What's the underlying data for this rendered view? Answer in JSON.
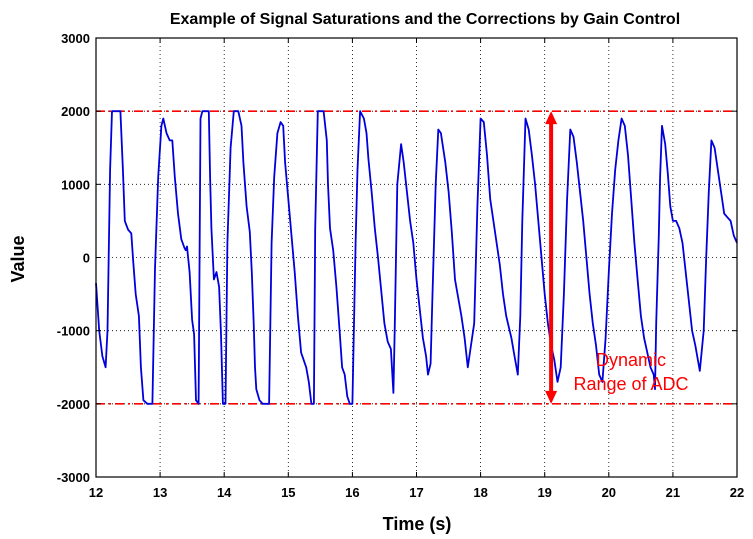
{
  "chart_data": {
    "type": "line",
    "title": "Example of Signal Saturations and the Corrections by Gain Control",
    "xlabel": "Time (s)",
    "ylabel": "Value",
    "xlim": [
      12,
      22
    ],
    "ylim": [
      -3000,
      3000
    ],
    "grid": true,
    "xticks": [
      "12",
      "13",
      "14",
      "15",
      "16",
      "17",
      "18",
      "19",
      "20",
      "21",
      "22"
    ],
    "yticks": [
      "3000",
      "2000",
      "1000",
      "0",
      "-1000",
      "-2000",
      "-3000"
    ],
    "series": [
      {
        "color": "#0000dd",
        "points": [
          [
            12.0,
            -350
          ],
          [
            12.05,
            -1000
          ],
          [
            12.1,
            -1350
          ],
          [
            12.15,
            -1500
          ],
          [
            12.18,
            -1000
          ],
          [
            12.22,
            1200
          ],
          [
            12.25,
            2000
          ],
          [
            12.3,
            2000
          ],
          [
            12.38,
            2000
          ],
          [
            12.42,
            1200
          ],
          [
            12.45,
            500
          ],
          [
            12.5,
            380
          ],
          [
            12.55,
            330
          ],
          [
            12.58,
            -50
          ],
          [
            12.62,
            -500
          ],
          [
            12.67,
            -800
          ],
          [
            12.7,
            -1500
          ],
          [
            12.74,
            -1950
          ],
          [
            12.8,
            -2000
          ],
          [
            12.88,
            -2000
          ],
          [
            12.92,
            -150
          ],
          [
            12.97,
            1100
          ],
          [
            13.02,
            1800
          ],
          [
            13.05,
            1900
          ],
          [
            13.1,
            1700
          ],
          [
            13.15,
            1600
          ],
          [
            13.19,
            1600
          ],
          [
            13.23,
            1100
          ],
          [
            13.28,
            600
          ],
          [
            13.33,
            250
          ],
          [
            13.38,
            130
          ],
          [
            13.4,
            100
          ],
          [
            13.42,
            150
          ],
          [
            13.46,
            -200
          ],
          [
            13.5,
            -850
          ],
          [
            13.53,
            -1050
          ],
          [
            13.56,
            -1950
          ],
          [
            13.6,
            -2000
          ],
          [
            13.63,
            1900
          ],
          [
            13.66,
            2000
          ],
          [
            13.72,
            2000
          ],
          [
            13.76,
            2000
          ],
          [
            13.78,
            1100
          ],
          [
            13.8,
            400
          ],
          [
            13.84,
            -300
          ],
          [
            13.88,
            -200
          ],
          [
            13.92,
            -400
          ],
          [
            13.95,
            -1050
          ],
          [
            13.98,
            -2000
          ],
          [
            14.02,
            -2000
          ],
          [
            14.05,
            200
          ],
          [
            14.1,
            1500
          ],
          [
            14.15,
            2000
          ],
          [
            14.22,
            2000
          ],
          [
            14.27,
            1800
          ],
          [
            14.3,
            1300
          ],
          [
            14.35,
            700
          ],
          [
            14.4,
            350
          ],
          [
            14.43,
            -200
          ],
          [
            14.46,
            -900
          ],
          [
            14.48,
            -1500
          ],
          [
            14.5,
            -1800
          ],
          [
            14.55,
            -1950
          ],
          [
            14.6,
            -2000
          ],
          [
            14.7,
            -2000
          ],
          [
            14.74,
            200
          ],
          [
            14.78,
            1100
          ],
          [
            14.83,
            1700
          ],
          [
            14.88,
            1850
          ],
          [
            14.92,
            1800
          ],
          [
            14.95,
            1300
          ],
          [
            15.0,
            800
          ],
          [
            15.05,
            300
          ],
          [
            15.1,
            -200
          ],
          [
            15.15,
            -800
          ],
          [
            15.2,
            -1300
          ],
          [
            15.28,
            -1500
          ],
          [
            15.32,
            -1700
          ],
          [
            15.36,
            -2000
          ],
          [
            15.4,
            -2000
          ],
          [
            15.42,
            400
          ],
          [
            15.46,
            2000
          ],
          [
            15.55,
            2000
          ],
          [
            15.6,
            1600
          ],
          [
            15.62,
            1000
          ],
          [
            15.65,
            400
          ],
          [
            15.7,
            100
          ],
          [
            15.75,
            -400
          ],
          [
            15.8,
            -1000
          ],
          [
            15.84,
            -1500
          ],
          [
            15.88,
            -1600
          ],
          [
            15.92,
            -1900
          ],
          [
            15.96,
            -2000
          ],
          [
            16.0,
            -2000
          ],
          [
            16.05,
            200
          ],
          [
            16.08,
            1200
          ],
          [
            16.12,
            2000
          ],
          [
            16.18,
            1900
          ],
          [
            16.22,
            1700
          ],
          [
            16.25,
            1350
          ],
          [
            16.3,
            900
          ],
          [
            16.35,
            400
          ],
          [
            16.4,
            0
          ],
          [
            16.45,
            -450
          ],
          [
            16.5,
            -900
          ],
          [
            16.55,
            -1150
          ],
          [
            16.6,
            -1250
          ],
          [
            16.64,
            -1850
          ],
          [
            16.66,
            -1000
          ],
          [
            16.7,
            1000
          ],
          [
            16.76,
            1550
          ],
          [
            16.8,
            1300
          ],
          [
            16.85,
            900
          ],
          [
            16.9,
            500
          ],
          [
            16.95,
            200
          ],
          [
            17.0,
            -300
          ],
          [
            17.05,
            -700
          ],
          [
            17.1,
            -1100
          ],
          [
            17.15,
            -1350
          ],
          [
            17.18,
            -1600
          ],
          [
            17.22,
            -1450
          ],
          [
            17.25,
            -500
          ],
          [
            17.3,
            1000
          ],
          [
            17.34,
            1750
          ],
          [
            17.38,
            1700
          ],
          [
            17.45,
            1300
          ],
          [
            17.5,
            900
          ],
          [
            17.55,
            350
          ],
          [
            17.6,
            -300
          ],
          [
            17.7,
            -800
          ],
          [
            17.75,
            -1100
          ],
          [
            17.8,
            -1500
          ],
          [
            17.85,
            -1200
          ],
          [
            17.9,
            -900
          ],
          [
            17.95,
            700
          ],
          [
            18.0,
            1900
          ],
          [
            18.05,
            1850
          ],
          [
            18.1,
            1400
          ],
          [
            18.15,
            800
          ],
          [
            18.2,
            500
          ],
          [
            18.25,
            200
          ],
          [
            18.3,
            -100
          ],
          [
            18.35,
            -500
          ],
          [
            18.4,
            -800
          ],
          [
            18.48,
            -1100
          ],
          [
            18.52,
            -1300
          ],
          [
            18.58,
            -1600
          ],
          [
            18.62,
            -800
          ],
          [
            18.65,
            500
          ],
          [
            18.7,
            1900
          ],
          [
            18.75,
            1750
          ],
          [
            18.8,
            1400
          ],
          [
            18.85,
            1000
          ],
          [
            18.9,
            500
          ],
          [
            18.95,
            0
          ],
          [
            19.0,
            -500
          ],
          [
            19.05,
            -900
          ],
          [
            19.1,
            -1200
          ],
          [
            19.15,
            -1400
          ],
          [
            19.2,
            -1700
          ],
          [
            19.25,
            -1500
          ],
          [
            19.3,
            -500
          ],
          [
            19.35,
            800
          ],
          [
            19.4,
            1750
          ],
          [
            19.45,
            1650
          ],
          [
            19.5,
            1300
          ],
          [
            19.55,
            900
          ],
          [
            19.6,
            500
          ],
          [
            19.65,
            0
          ],
          [
            19.7,
            -500
          ],
          [
            19.75,
            -900
          ],
          [
            19.8,
            -1200
          ],
          [
            19.85,
            -1600
          ],
          [
            19.9,
            -1700
          ],
          [
            19.95,
            -1100
          ],
          [
            20.0,
            -200
          ],
          [
            20.05,
            600
          ],
          [
            20.1,
            1200
          ],
          [
            20.15,
            1600
          ],
          [
            20.2,
            1900
          ],
          [
            20.25,
            1800
          ],
          [
            20.3,
            1400
          ],
          [
            20.35,
            800
          ],
          [
            20.4,
            200
          ],
          [
            20.45,
            -300
          ],
          [
            20.5,
            -800
          ],
          [
            20.55,
            -1100
          ],
          [
            20.6,
            -1300
          ],
          [
            20.65,
            -1500
          ],
          [
            20.7,
            -1600
          ],
          [
            20.72,
            -1800
          ],
          [
            20.74,
            -900
          ],
          [
            20.78,
            300
          ],
          [
            20.8,
            1100
          ],
          [
            20.83,
            1800
          ],
          [
            20.88,
            1550
          ],
          [
            20.92,
            1150
          ],
          [
            20.96,
            700
          ],
          [
            21.0,
            500
          ],
          [
            21.05,
            500
          ],
          [
            21.1,
            400
          ],
          [
            21.15,
            200
          ],
          [
            21.2,
            -200
          ],
          [
            21.25,
            -600
          ],
          [
            21.3,
            -1000
          ],
          [
            21.35,
            -1200
          ],
          [
            21.42,
            -1550
          ],
          [
            21.48,
            -1000
          ],
          [
            21.52,
            0
          ],
          [
            21.56,
            900
          ],
          [
            21.6,
            1600
          ],
          [
            21.65,
            1500
          ],
          [
            21.7,
            1200
          ],
          [
            21.75,
            900
          ],
          [
            21.8,
            600
          ],
          [
            21.85,
            550
          ],
          [
            21.9,
            500
          ],
          [
            21.95,
            300
          ],
          [
            22.0,
            200
          ]
        ]
      }
    ],
    "hlines": [
      {
        "y": 2000,
        "color": "#ff0000",
        "style": "dashed"
      },
      {
        "y": -2000,
        "color": "#ff0000",
        "style": "dashed"
      }
    ],
    "arrow": {
      "x": 19.1,
      "y1": 2000,
      "y2": -2000,
      "color": "#ff0000"
    },
    "annotation": {
      "lines": [
        "Dynamic",
        "Range of ADC"
      ],
      "color": "#ff0000"
    }
  }
}
